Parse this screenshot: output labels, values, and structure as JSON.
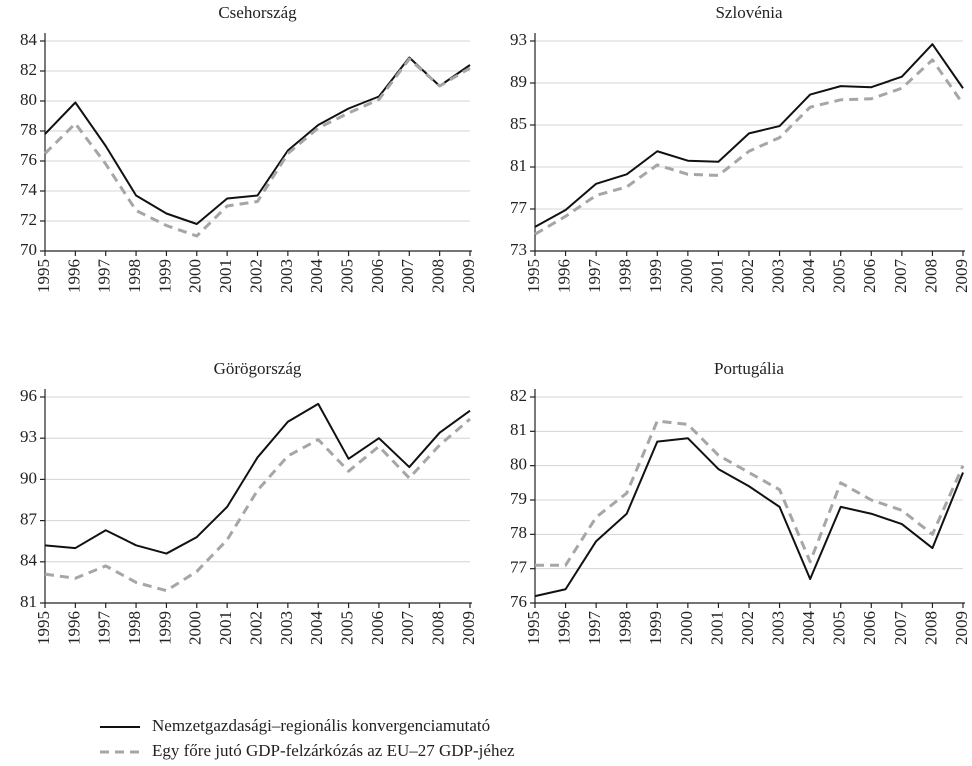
{
  "chart_data": [
    {
      "type": "line",
      "title": "Csehország",
      "x": [
        1995,
        1996,
        1997,
        1998,
        1999,
        2000,
        2001,
        2002,
        2003,
        2004,
        2005,
        2006,
        2007,
        2008,
        2009
      ],
      "xlim": [
        1995,
        2009
      ],
      "ylim": [
        70,
        84
      ],
      "yticks": [
        70,
        72,
        74,
        76,
        78,
        80,
        82,
        84
      ],
      "grid": true,
      "series": [
        {
          "name": "Nemzetgazdasági–regionális konvergenciamutató",
          "color": "#111111",
          "style": "solid",
          "values": [
            77.8,
            79.9,
            77.0,
            73.7,
            72.5,
            71.8,
            73.5,
            73.7,
            76.7,
            78.4,
            79.5,
            80.3,
            82.9,
            81.0,
            82.4
          ]
        },
        {
          "name": "Egy főre jutó GDP-felzárkózás az EU–27 GDP-jéhez",
          "color": "#a6a6a6",
          "style": "dashed",
          "values": [
            76.5,
            78.5,
            75.8,
            72.7,
            71.7,
            71.0,
            73.0,
            73.3,
            76.5,
            78.2,
            79.2,
            80.1,
            82.8,
            81.0,
            82.2
          ]
        }
      ]
    },
    {
      "type": "line",
      "title": "Szlovénia",
      "x": [
        1995,
        1996,
        1997,
        1998,
        1999,
        2000,
        2001,
        2002,
        2003,
        2004,
        2005,
        2006,
        2007,
        2008,
        2009
      ],
      "xlim": [
        1995,
        2009
      ],
      "ylim": [
        73,
        93
      ],
      "yticks": [
        73,
        77,
        81,
        85,
        89,
        93
      ],
      "grid": true,
      "series": [
        {
          "color": "#111111",
          "style": "solid",
          "values": [
            75.3,
            76.9,
            79.4,
            80.3,
            82.5,
            81.6,
            81.5,
            84.2,
            84.9,
            87.9,
            88.7,
            88.6,
            89.6,
            92.7,
            88.5
          ]
        },
        {
          "color": "#a6a6a6",
          "style": "dashed",
          "values": [
            74.6,
            76.3,
            78.3,
            79.1,
            81.2,
            80.3,
            80.2,
            82.5,
            83.8,
            86.7,
            87.4,
            87.5,
            88.5,
            91.2,
            87.0
          ]
        }
      ]
    },
    {
      "type": "line",
      "title": "Görögország",
      "x": [
        1995,
        1996,
        1997,
        1998,
        1999,
        2000,
        2001,
        2002,
        2003,
        2004,
        2005,
        2006,
        2007,
        2008,
        2009
      ],
      "xlim": [
        1995,
        2009
      ],
      "ylim": [
        81,
        96
      ],
      "yticks": [
        81,
        84,
        87,
        90,
        93,
        96
      ],
      "grid": true,
      "series": [
        {
          "color": "#111111",
          "style": "solid",
          "values": [
            85.2,
            85.0,
            86.3,
            85.2,
            84.6,
            85.8,
            88.0,
            91.6,
            94.2,
            95.5,
            91.5,
            93.0,
            90.9,
            93.4,
            95.0
          ]
        },
        {
          "color": "#a6a6a6",
          "style": "dashed",
          "values": [
            83.1,
            82.8,
            83.7,
            82.5,
            81.9,
            83.3,
            85.6,
            89.2,
            91.7,
            92.9,
            90.6,
            92.4,
            90.1,
            92.5,
            94.4
          ]
        }
      ]
    },
    {
      "type": "line",
      "title": "Portugália",
      "x": [
        1995,
        1996,
        1997,
        1998,
        1999,
        2000,
        2001,
        2002,
        2003,
        2004,
        2005,
        2006,
        2007,
        2008,
        2009
      ],
      "xlim": [
        1995,
        2009
      ],
      "ylim": [
        76,
        82
      ],
      "yticks": [
        76,
        77,
        78,
        79,
        80,
        81,
        82
      ],
      "grid": true,
      "series": [
        {
          "color": "#111111",
          "style": "solid",
          "values": [
            76.2,
            76.4,
            77.8,
            78.6,
            80.7,
            80.8,
            79.9,
            79.4,
            78.8,
            76.7,
            78.8,
            78.6,
            78.3,
            77.6,
            79.8
          ]
        },
        {
          "color": "#a6a6a6",
          "style": "dashed",
          "values": [
            77.1,
            77.1,
            78.5,
            79.2,
            81.3,
            81.2,
            80.3,
            79.8,
            79.3,
            77.2,
            79.5,
            79.0,
            78.7,
            78.0,
            80.0
          ]
        }
      ]
    }
  ]
}
